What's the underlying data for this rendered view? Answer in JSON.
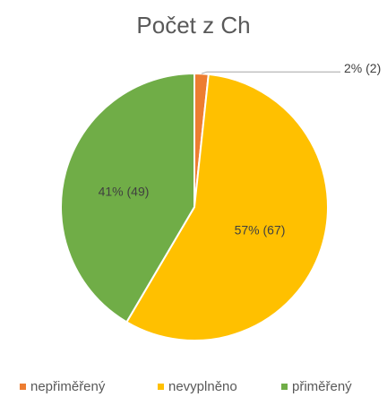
{
  "chart_data": {
    "type": "pie",
    "title": "Počet z Ch",
    "categories": [
      "nepřiměřený",
      "nevyplněno",
      "přiměřený"
    ],
    "values": [
      2,
      67,
      49
    ],
    "value_labels": [
      "2% (2)",
      "57% (67)",
      "41% (49)"
    ],
    "colors": [
      "#ed7d31",
      "#ffc000",
      "#70ad47"
    ],
    "legend": "bottom"
  }
}
